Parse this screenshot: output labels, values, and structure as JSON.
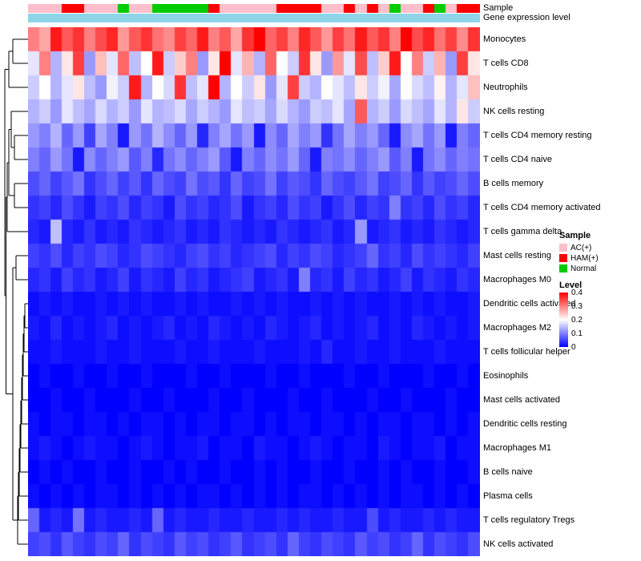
{
  "annotation_tracks": {
    "sample_label": "Sample",
    "expression_label": "Gene expression level"
  },
  "legend": {
    "sample": {
      "title": "Sample",
      "items": [
        {
          "label": "AC(+)",
          "color": "#FFC0CB"
        },
        {
          "label": "HAM(+)",
          "color": "#FF0000"
        },
        {
          "label": "Normal",
          "color": "#00CC00"
        }
      ]
    },
    "level": {
      "title": "Level",
      "ticks": [
        "0.4",
        "0.3",
        "0.2",
        "0.1",
        "0"
      ],
      "gradient": [
        "#FF0000",
        "#FFFFFF",
        "#0000FF"
      ]
    }
  },
  "chart_data": {
    "type": "heatmap",
    "title": "",
    "xlabel": "",
    "ylabel": "",
    "legend_position": "right",
    "grid": false,
    "value_range": [
      0,
      0.4
    ],
    "colorscale": {
      "min_color": "#0000FF",
      "mid_color": "#FFFFFF",
      "max_color": "#FF0000",
      "mid_value": 0.2
    },
    "columns_count": 40,
    "rows": [
      "Monocytes",
      "T cells CD8",
      "Neutrophils",
      "NK cells resting",
      "T cells CD4 memory resting",
      "T cells CD4 naive",
      "B cells memory",
      "T cells CD4 memory activated",
      "T cells gamma delta",
      "Mast cells resting",
      "Macrophages M0",
      "Dendritic cells activated",
      "Macrophages M2",
      "T cells follicular helper",
      "Eosinophils",
      "Mast cells activated",
      "Dendritic cells resting",
      "Macrophages M1",
      "B cells naive",
      "Plasma cells",
      "T cells regulatory  Tregs",
      "NK cells activated"
    ],
    "column_annotations": {
      "sample": [
        "AC(+)",
        "AC(+)",
        "AC(+)",
        "HAM(+)",
        "HAM(+)",
        "AC(+)",
        "AC(+)",
        "AC(+)",
        "Normal",
        "AC(+)",
        "AC(+)",
        "Normal",
        "Normal",
        "Normal",
        "Normal",
        "Normal",
        "HAM(+)",
        "AC(+)",
        "AC(+)",
        "AC(+)",
        "AC(+)",
        "AC(+)",
        "HAM(+)",
        "HAM(+)",
        "HAM(+)",
        "HAM(+)",
        "AC(+)",
        "AC(+)",
        "HAM(+)",
        "AC(+)",
        "HAM(+)",
        "AC(+)",
        "Normal",
        "AC(+)",
        "AC(+)",
        "HAM(+)",
        "Normal",
        "AC(+)",
        "HAM(+)",
        "HAM(+)"
      ],
      "gene_expression_level": {
        "uniform_color": "#8FD5E8"
      }
    },
    "matrix": [
      [
        0.3,
        0.27,
        0.38,
        0.33,
        0.36,
        0.3,
        0.34,
        0.37,
        0.28,
        0.33,
        0.36,
        0.31,
        0.29,
        0.35,
        0.32,
        0.38,
        0.3,
        0.33,
        0.27,
        0.36,
        0.4,
        0.32,
        0.35,
        0.3,
        0.37,
        0.33,
        0.28,
        0.35,
        0.31,
        0.38,
        0.33,
        0.36,
        0.3,
        0.4,
        0.34,
        0.37,
        0.31,
        0.35,
        0.29,
        0.36
      ],
      [
        0.18,
        0.3,
        0.14,
        0.22,
        0.35,
        0.12,
        0.25,
        0.18,
        0.32,
        0.15,
        0.2,
        0.38,
        0.16,
        0.24,
        0.3,
        0.12,
        0.22,
        0.4,
        0.18,
        0.26,
        0.14,
        0.32,
        0.2,
        0.16,
        0.36,
        0.22,
        0.12,
        0.28,
        0.18,
        0.34,
        0.15,
        0.24,
        0.38,
        0.2,
        0.3,
        0.16,
        0.26,
        0.12,
        0.35,
        0.22
      ],
      [
        0.16,
        0.2,
        0.14,
        0.18,
        0.22,
        0.15,
        0.12,
        0.19,
        0.16,
        0.38,
        0.14,
        0.2,
        0.17,
        0.36,
        0.15,
        0.18,
        0.4,
        0.14,
        0.2,
        0.16,
        0.22,
        0.12,
        0.18,
        0.35,
        0.16,
        0.14,
        0.2,
        0.18,
        0.15,
        0.22,
        0.16,
        0.19,
        0.13,
        0.2,
        0.17,
        0.15,
        0.21,
        0.14,
        0.18,
        0.25
      ],
      [
        0.14,
        0.16,
        0.12,
        0.18,
        0.15,
        0.13,
        0.17,
        0.14,
        0.16,
        0.12,
        0.18,
        0.14,
        0.15,
        0.17,
        0.13,
        0.16,
        0.14,
        0.12,
        0.18,
        0.15,
        0.16,
        0.13,
        0.17,
        0.14,
        0.12,
        0.16,
        0.15,
        0.18,
        0.13,
        0.33,
        0.14,
        0.16,
        0.12,
        0.17,
        0.15,
        0.13,
        0.18,
        0.14,
        0.22,
        0.16
      ],
      [
        0.12,
        0.1,
        0.14,
        0.08,
        0.12,
        0.05,
        0.13,
        0.1,
        0.02,
        0.12,
        0.09,
        0.14,
        0.11,
        0.08,
        0.12,
        0.03,
        0.1,
        0.13,
        0.09,
        0.12,
        0.02,
        0.11,
        0.08,
        0.13,
        0.1,
        0.12,
        0.04,
        0.09,
        0.13,
        0.1,
        0.12,
        0.08,
        0.02,
        0.11,
        0.13,
        0.09,
        0.12,
        0.02,
        0.1,
        0.08
      ],
      [
        0.1,
        0.08,
        0.12,
        0.09,
        0.02,
        0.11,
        0.08,
        0.1,
        0.12,
        0.07,
        0.1,
        0.03,
        0.09,
        0.11,
        0.08,
        0.1,
        0.12,
        0.07,
        0.02,
        0.1,
        0.08,
        0.11,
        0.09,
        0.12,
        0.08,
        0.02,
        0.1,
        0.09,
        0.11,
        0.08,
        0.1,
        0.12,
        0.07,
        0.1,
        0.02,
        0.09,
        0.11,
        0.08,
        0.1,
        0.09
      ],
      [
        0.06,
        0.08,
        0.05,
        0.07,
        0.09,
        0.04,
        0.06,
        0.08,
        0.05,
        0.07,
        0.04,
        0.08,
        0.06,
        0.05,
        0.09,
        0.06,
        0.07,
        0.04,
        0.08,
        0.05,
        0.06,
        0.09,
        0.05,
        0.07,
        0.06,
        0.04,
        0.08,
        0.06,
        0.05,
        0.07,
        0.09,
        0.05,
        0.06,
        0.08,
        0.04,
        0.07,
        0.05,
        0.06,
        0.08,
        0.06
      ],
      [
        0.04,
        0.05,
        0.03,
        0.06,
        0.04,
        0.02,
        0.05,
        0.04,
        0.06,
        0.03,
        0.05,
        0.04,
        0.02,
        0.06,
        0.04,
        0.05,
        0.03,
        0.04,
        0.06,
        0.02,
        0.04,
        0.05,
        0.03,
        0.06,
        0.04,
        0.05,
        0.02,
        0.04,
        0.06,
        0.03,
        0.05,
        0.04,
        0.1,
        0.04,
        0.05,
        0.03,
        0.06,
        0.04,
        0.05,
        0.03
      ],
      [
        0.03,
        0.02,
        0.15,
        0.03,
        0.02,
        0.04,
        0.02,
        0.03,
        0.02,
        0.04,
        0.03,
        0.02,
        0.03,
        0.04,
        0.02,
        0.03,
        0.02,
        0.04,
        0.03,
        0.02,
        0.03,
        0.02,
        0.04,
        0.03,
        0.02,
        0.03,
        0.04,
        0.02,
        0.03,
        0.12,
        0.02,
        0.03,
        0.04,
        0.02,
        0.03,
        0.02,
        0.04,
        0.03,
        0.02,
        0.03
      ],
      [
        0.05,
        0.04,
        0.06,
        0.03,
        0.05,
        0.04,
        0.06,
        0.05,
        0.03,
        0.04,
        0.06,
        0.05,
        0.04,
        0.03,
        0.05,
        0.06,
        0.04,
        0.05,
        0.03,
        0.04,
        0.05,
        0.06,
        0.03,
        0.05,
        0.04,
        0.06,
        0.05,
        0.03,
        0.04,
        0.05,
        0.08,
        0.04,
        0.05,
        0.03,
        0.06,
        0.04,
        0.05,
        0.04,
        0.03,
        0.05
      ],
      [
        0.03,
        0.04,
        0.02,
        0.05,
        0.03,
        0.04,
        0.02,
        0.03,
        0.05,
        0.02,
        0.04,
        0.03,
        0.02,
        0.05,
        0.03,
        0.04,
        0.02,
        0.03,
        0.04,
        0.05,
        0.02,
        0.03,
        0.04,
        0.02,
        0.1,
        0.03,
        0.04,
        0.02,
        0.05,
        0.03,
        0.04,
        0.02,
        0.03,
        0.05,
        0.02,
        0.04,
        0.03,
        0.02,
        0.04,
        0.03
      ],
      [
        0.01,
        0.02,
        0.01,
        0.02,
        0.01,
        0.01,
        0.02,
        0.01,
        0.02,
        0.01,
        0.02,
        0.01,
        0.01,
        0.02,
        0.01,
        0.02,
        0.01,
        0.01,
        0.02,
        0.01,
        0.02,
        0.01,
        0.02,
        0.01,
        0.01,
        0.02,
        0.01,
        0.02,
        0.01,
        0.02,
        0.01,
        0.01,
        0.02,
        0.01,
        0.02,
        0.01,
        0.02,
        0.01,
        0.01,
        0.02
      ],
      [
        0.02,
        0.01,
        0.03,
        0.01,
        0.02,
        0.01,
        0.02,
        0.03,
        0.01,
        0.02,
        0.01,
        0.02,
        0.03,
        0.01,
        0.02,
        0.01,
        0.03,
        0.02,
        0.01,
        0.02,
        0.01,
        0.03,
        0.02,
        0.01,
        0.02,
        0.03,
        0.01,
        0.02,
        0.01,
        0.02,
        0.03,
        0.01,
        0.02,
        0.01,
        0.03,
        0.02,
        0.01,
        0.02,
        0.01,
        0.02
      ],
      [
        0.01,
        0.01,
        0.02,
        0.01,
        0.01,
        0.01,
        0.02,
        0.01,
        0.01,
        0.02,
        0.01,
        0.01,
        0.01,
        0.02,
        0.01,
        0.01,
        0.02,
        0.01,
        0.01,
        0.01,
        0.02,
        0.01,
        0.01,
        0.01,
        0.02,
        0.01,
        0.03,
        0.01,
        0.01,
        0.02,
        0.01,
        0.01,
        0.02,
        0.01,
        0.01,
        0.01,
        0.02,
        0.01,
        0.01,
        0.01
      ],
      [
        0.0,
        0.01,
        0.0,
        0.0,
        0.01,
        0.0,
        0.0,
        0.01,
        0.0,
        0.0,
        0.01,
        0.0,
        0.0,
        0.0,
        0.01,
        0.0,
        0.0,
        0.01,
        0.0,
        0.0,
        0.0,
        0.01,
        0.0,
        0.0,
        0.01,
        0.0,
        0.0,
        0.0,
        0.01,
        0.0,
        0.0,
        0.01,
        0.0,
        0.0,
        0.0,
        0.01,
        0.0,
        0.0,
        0.01,
        0.0
      ],
      [
        0.0,
        0.0,
        0.01,
        0.0,
        0.0,
        0.01,
        0.0,
        0.0,
        0.0,
        0.01,
        0.0,
        0.0,
        0.01,
        0.0,
        0.0,
        0.0,
        0.01,
        0.0,
        0.0,
        0.01,
        0.0,
        0.0,
        0.0,
        0.01,
        0.0,
        0.0,
        0.01,
        0.0,
        0.0,
        0.0,
        0.01,
        0.0,
        0.0,
        0.01,
        0.0,
        0.0,
        0.0,
        0.01,
        0.0,
        0.0
      ],
      [
        0.01,
        0.0,
        0.01,
        0.01,
        0.0,
        0.01,
        0.01,
        0.0,
        0.01,
        0.0,
        0.01,
        0.01,
        0.0,
        0.01,
        0.0,
        0.01,
        0.01,
        0.0,
        0.01,
        0.01,
        0.0,
        0.01,
        0.0,
        0.01,
        0.01,
        0.0,
        0.01,
        0.01,
        0.0,
        0.01,
        0.0,
        0.01,
        0.01,
        0.0,
        0.01,
        0.01,
        0.0,
        0.01,
        0.0,
        0.01
      ],
      [
        0.01,
        0.02,
        0.01,
        0.0,
        0.01,
        0.02,
        0.01,
        0.01,
        0.0,
        0.01,
        0.02,
        0.01,
        0.0,
        0.01,
        0.01,
        0.02,
        0.0,
        0.01,
        0.01,
        0.0,
        0.02,
        0.01,
        0.01,
        0.0,
        0.01,
        0.02,
        0.01,
        0.0,
        0.01,
        0.01,
        0.0,
        0.02,
        0.01,
        0.0,
        0.01,
        0.01,
        0.02,
        0.0,
        0.01,
        0.01
      ],
      [
        0.0,
        0.01,
        0.0,
        0.01,
        0.0,
        0.0,
        0.01,
        0.0,
        0.0,
        0.01,
        0.0,
        0.0,
        0.01,
        0.0,
        0.01,
        0.0,
        0.0,
        0.01,
        0.0,
        0.0,
        0.01,
        0.0,
        0.01,
        0.0,
        0.0,
        0.01,
        0.0,
        0.0,
        0.01,
        0.0,
        0.0,
        0.01,
        0.0,
        0.01,
        0.0,
        0.0,
        0.01,
        0.0,
        0.0,
        0.01
      ],
      [
        0.01,
        0.0,
        0.01,
        0.0,
        0.01,
        0.0,
        0.01,
        0.01,
        0.0,
        0.01,
        0.0,
        0.01,
        0.0,
        0.01,
        0.0,
        0.01,
        0.01,
        0.0,
        0.01,
        0.0,
        0.01,
        0.0,
        0.01,
        0.0,
        0.01,
        0.01,
        0.0,
        0.01,
        0.0,
        0.01,
        0.0,
        0.01,
        0.0,
        0.01,
        0.01,
        0.0,
        0.01,
        0.0,
        0.01,
        0.0
      ],
      [
        0.08,
        0.02,
        0.03,
        0.02,
        0.09,
        0.02,
        0.03,
        0.02,
        0.02,
        0.03,
        0.02,
        0.08,
        0.02,
        0.03,
        0.02,
        0.02,
        0.03,
        0.02,
        0.02,
        0.03,
        0.02,
        0.02,
        0.03,
        0.02,
        0.03,
        0.02,
        0.02,
        0.03,
        0.02,
        0.02,
        0.06,
        0.02,
        0.03,
        0.02,
        0.02,
        0.03,
        0.02,
        0.03,
        0.02,
        0.02
      ],
      [
        0.05,
        0.06,
        0.04,
        0.07,
        0.05,
        0.04,
        0.06,
        0.05,
        0.08,
        0.04,
        0.06,
        0.05,
        0.04,
        0.07,
        0.05,
        0.06,
        0.04,
        0.05,
        0.07,
        0.04,
        0.05,
        0.06,
        0.04,
        0.08,
        0.05,
        0.04,
        0.06,
        0.05,
        0.04,
        0.07,
        0.05,
        0.06,
        0.04,
        0.05,
        0.08,
        0.04,
        0.06,
        0.05,
        0.04,
        0.06
      ]
    ]
  }
}
